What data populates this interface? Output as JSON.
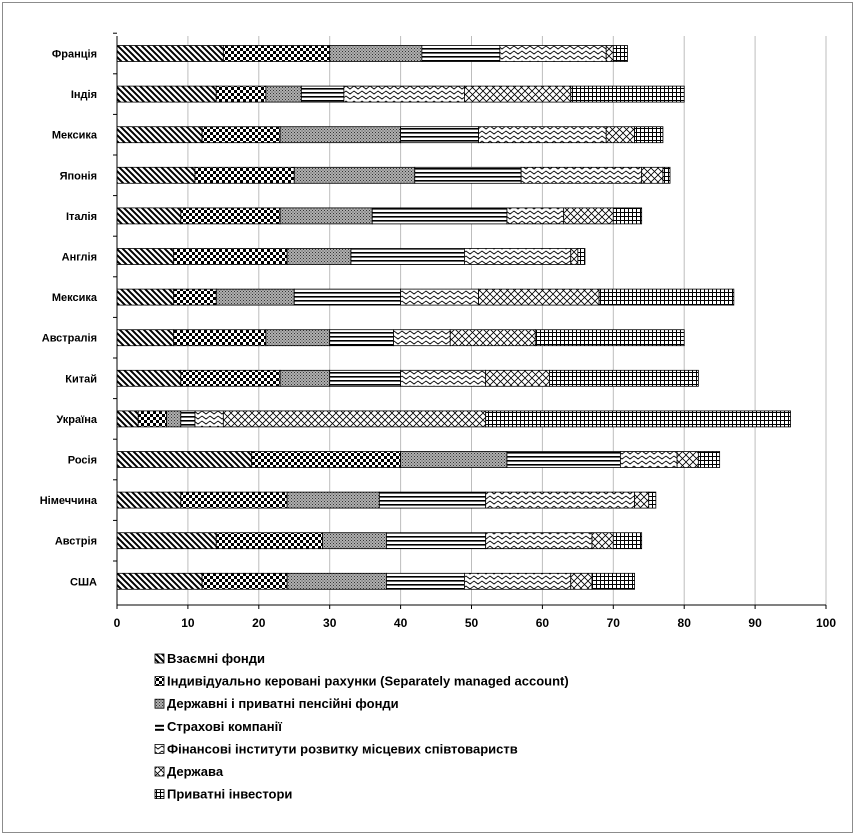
{
  "chart_data": {
    "type": "bar",
    "orientation": "horizontal",
    "stacked": true,
    "categories": [
      "Франція",
      "Індія",
      "Мексика",
      "Японія",
      "Італія",
      "Англія",
      "Мексика",
      "Австралія",
      "Китай",
      "Україна",
      "Росія",
      "Німеччина",
      "Австрія",
      "США"
    ],
    "series": [
      {
        "name": "Взаємні фонди",
        "pattern": "diag-down",
        "values": [
          15,
          14,
          12,
          11,
          9,
          8,
          8,
          8,
          9,
          3,
          19,
          9,
          14,
          12
        ]
      },
      {
        "name": "Індивідуально керовані рахунки (Separately managed account)",
        "pattern": "checker",
        "values": [
          15,
          7,
          11,
          14,
          14,
          16,
          6,
          13,
          14,
          4,
          21,
          15,
          15,
          12
        ]
      },
      {
        "name": "Державні і приватні пенсійні фонди",
        "pattern": "dots",
        "values": [
          13,
          5,
          17,
          17,
          13,
          9,
          11,
          9,
          7,
          2,
          15,
          13,
          9,
          14
        ]
      },
      {
        "name": "Страхові компанії",
        "pattern": "hlines",
        "values": [
          11,
          6,
          11,
          15,
          19,
          16,
          15,
          9,
          10,
          2,
          16,
          15,
          14,
          11
        ]
      },
      {
        "name": "Фінансові інститути розвитку місцевих співтовариств",
        "pattern": "wave",
        "values": [
          15,
          17,
          18,
          17,
          8,
          15,
          11,
          8,
          12,
          4,
          8,
          21,
          15,
          15
        ]
      },
      {
        "name": "Держава",
        "pattern": "crosshatch",
        "values": [
          1,
          15,
          4,
          3,
          7,
          1,
          17,
          12,
          9,
          37,
          3,
          2,
          3,
          3
        ]
      },
      {
        "name": "Приватні інвестори",
        "pattern": "grid",
        "values": [
          2,
          16,
          4,
          1,
          4,
          1,
          19,
          21,
          21,
          43,
          3,
          1,
          4,
          6
        ]
      }
    ],
    "xlim": [
      0,
      100
    ],
    "xticks": [
      "0",
      "10",
      "20",
      "30",
      "40",
      "50",
      "60",
      "70",
      "80",
      "90",
      "100"
    ],
    "grid": true,
    "legend_position": "bottom",
    "title": "",
    "xlabel": "",
    "ylabel": ""
  },
  "legend": {
    "items": [
      {
        "label": "Взаємні фонди"
      },
      {
        "label": "Індивідуально керовані рахунки (Separately managed account)"
      },
      {
        "label": "Державні і приватні пенсійні фонди"
      },
      {
        "label": "Страхові компанії"
      },
      {
        "label": "Фінансові інститути розвитку місцевих співтовариств"
      },
      {
        "label": "Держава"
      },
      {
        "label": "Приватні інвестори"
      }
    ]
  }
}
